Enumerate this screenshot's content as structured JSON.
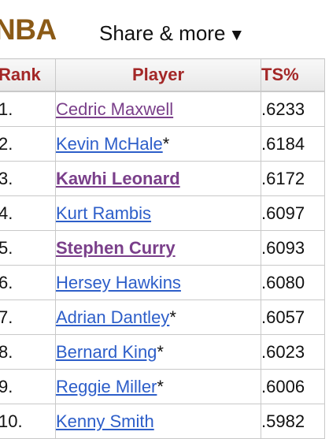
{
  "header": {
    "brand": "NBA",
    "share_label": "Share & more",
    "share_arrow": "▼"
  },
  "table": {
    "columns": [
      "Rank",
      "Player",
      "TS%"
    ],
    "rows": [
      {
        "rank": "1.",
        "player": "Cedric Maxwell",
        "hof": "",
        "ts": ".6233"
      },
      {
        "rank": "2.",
        "player": "Kevin McHale",
        "hof": "*",
        "ts": ".6184"
      },
      {
        "rank": "3.",
        "player": "Kawhi Leonard",
        "hof": "",
        "ts": ".6172"
      },
      {
        "rank": "4.",
        "player": "Kurt Rambis",
        "hof": "",
        "ts": ".6097"
      },
      {
        "rank": "5.",
        "player": "Stephen Curry",
        "hof": "",
        "ts": ".6093"
      },
      {
        "rank": "6.",
        "player": "Hersey Hawkins",
        "hof": "",
        "ts": ".6080"
      },
      {
        "rank": "7.",
        "player": "Adrian Dantley",
        "hof": "*",
        "ts": ".6057"
      },
      {
        "rank": "8.",
        "player": "Bernard King",
        "hof": "*",
        "ts": ".6023"
      },
      {
        "rank": "9.",
        "player": "Reggie Miller",
        "hof": "*",
        "ts": ".6006"
      },
      {
        "rank": "10.",
        "player": "Kenny Smith",
        "hof": "",
        "ts": ".5982"
      }
    ]
  },
  "colors": {
    "brand": "#8b5a16",
    "header_text": "#a32727",
    "link": "#2d5ec9",
    "visited_link": "#7a3f8a"
  }
}
